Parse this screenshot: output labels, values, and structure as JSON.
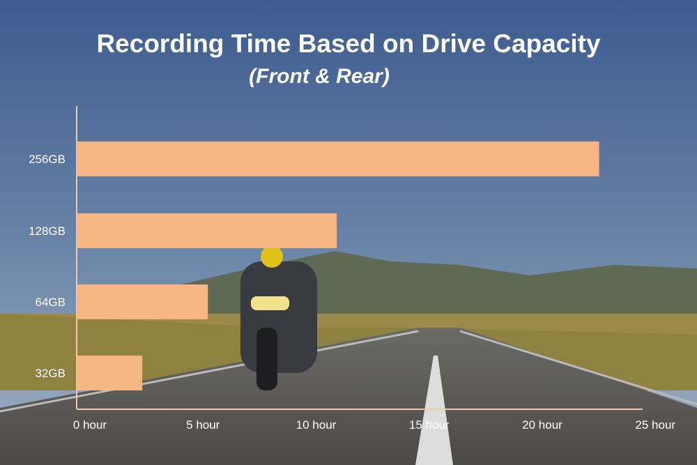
{
  "chart_data": {
    "type": "bar",
    "orientation": "horizontal",
    "title": "Recording Time Based on Drive Capacity",
    "subtitle": "(Front & Rear)",
    "categories": [
      "256GB",
      "128GB",
      "64GB",
      "32GB"
    ],
    "values": [
      23.1,
      11.5,
      5.8,
      2.9
    ],
    "xlabel": "",
    "ylabel": "",
    "xlim": [
      0,
      25
    ],
    "x_ticks": [
      0,
      5,
      10,
      15,
      20,
      25
    ],
    "x_tick_labels": [
      "0 hour",
      "5 hour",
      "10 hour",
      "15 hour",
      "20 hour",
      "25 hour"
    ],
    "grid": false,
    "bar_color": "#f6b683",
    "axis_color": "#f6c9a4",
    "background": "photo of motorcyclist on open road under blue sky"
  }
}
